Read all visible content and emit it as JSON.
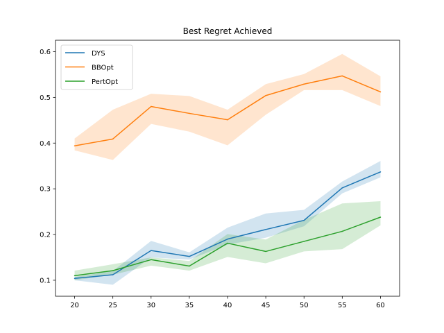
{
  "chart_data": {
    "type": "line",
    "title": "Best Regret Achieved",
    "xlabel": "",
    "ylabel": "",
    "x": [
      20,
      25,
      30,
      35,
      40,
      45,
      50,
      55,
      60
    ],
    "xlim": [
      17.5,
      62.5
    ],
    "ylim": [
      0.065,
      0.625
    ],
    "xticks": [
      20,
      25,
      30,
      35,
      40,
      45,
      50,
      55,
      60
    ],
    "yticks": [
      0.1,
      0.2,
      0.3,
      0.4,
      0.5,
      0.6
    ],
    "ytick_labels": [
      "0.1",
      "0.2",
      "0.3",
      "0.4",
      "0.5",
      "0.6"
    ],
    "grid": false,
    "legend_position": "top-left",
    "series": [
      {
        "name": "DYS",
        "color": "#1f77b4",
        "values": [
          0.104,
          0.112,
          0.165,
          0.152,
          0.19,
          0.211,
          0.231,
          0.302,
          0.337
        ],
        "lower": [
          0.1,
          0.09,
          0.15,
          0.145,
          0.178,
          0.193,
          0.218,
          0.29,
          0.325
        ],
        "upper": [
          0.107,
          0.12,
          0.186,
          0.161,
          0.215,
          0.246,
          0.254,
          0.316,
          0.361
        ]
      },
      {
        "name": "BBOpt",
        "color": "#ff7f0e",
        "values": [
          0.394,
          0.409,
          0.48,
          0.465,
          0.451,
          0.504,
          0.529,
          0.547,
          0.512
        ],
        "lower": [
          0.384,
          0.363,
          0.442,
          0.425,
          0.395,
          0.462,
          0.516,
          0.516,
          0.481
        ],
        "upper": [
          0.41,
          0.473,
          0.508,
          0.503,
          0.473,
          0.529,
          0.551,
          0.595,
          0.546
        ]
      },
      {
        "name": "PertOpt",
        "color": "#2ca02c",
        "values": [
          0.11,
          0.121,
          0.145,
          0.131,
          0.181,
          0.163,
          0.185,
          0.207,
          0.238
        ],
        "lower": [
          0.1,
          0.112,
          0.132,
          0.121,
          0.151,
          0.137,
          0.163,
          0.168,
          0.22
        ],
        "upper": [
          0.121,
          0.135,
          0.15,
          0.142,
          0.201,
          0.189,
          0.232,
          0.268,
          0.273
        ]
      }
    ]
  }
}
